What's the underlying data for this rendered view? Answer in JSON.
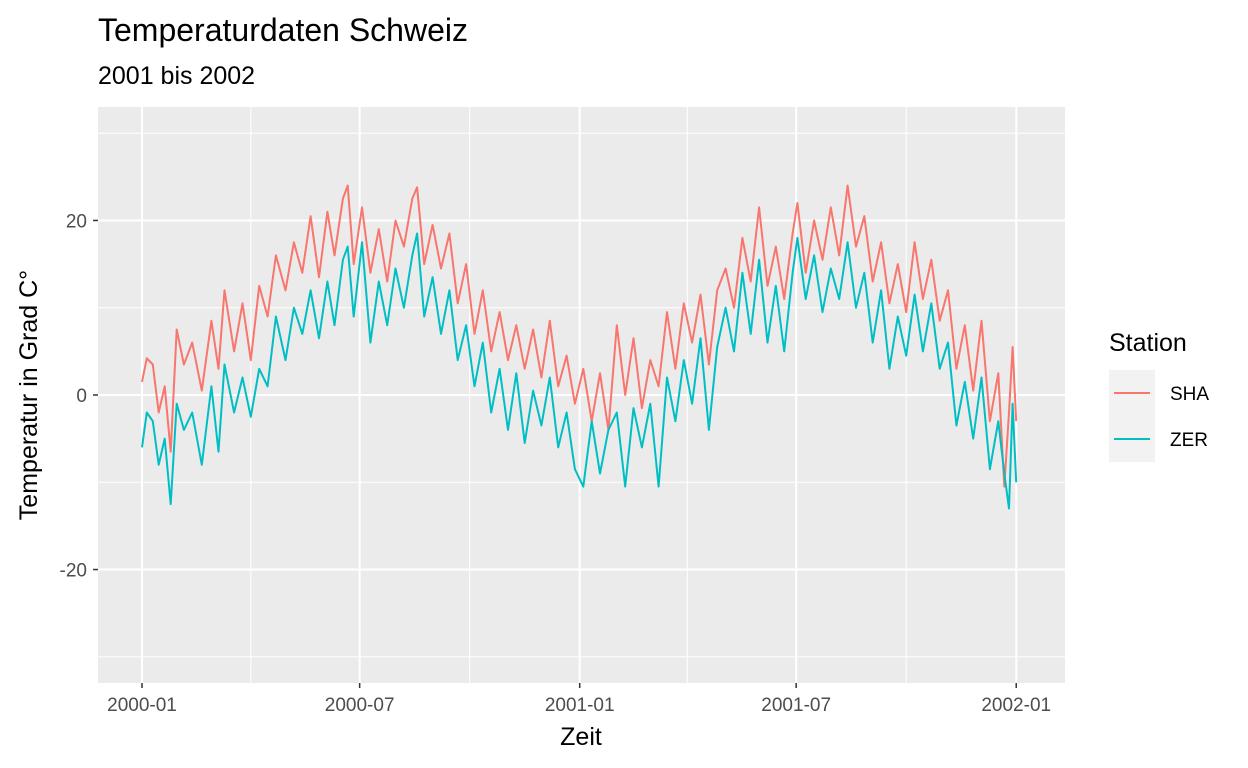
{
  "chart_data": {
    "type": "line",
    "title": "Temperaturdaten Schweiz",
    "subtitle": "2001 bis 2002",
    "xlabel": "Zeit",
    "ylabel": "Temperatur in Grad C°",
    "xlim": [
      "2000-01-01",
      "2002-01-05"
    ],
    "ylim": [
      -33,
      33
    ],
    "x_ticks": [
      "2000-01",
      "2000-07",
      "2001-01",
      "2001-07",
      "2002-01"
    ],
    "y_ticks": [
      -20,
      0,
      20
    ],
    "grid": true,
    "legend_title": "Station",
    "legend_position": "right",
    "series": [
      {
        "name": "SHA",
        "color": "#F8766D",
        "points": [
          [
            "2000-01-01",
            1.5
          ],
          [
            "2000-01-05",
            4.2
          ],
          [
            "2000-01-10",
            3.5
          ],
          [
            "2000-01-15",
            -2.0
          ],
          [
            "2000-01-20",
            1.0
          ],
          [
            "2000-01-25",
            -6.5
          ],
          [
            "2000-01-30",
            7.5
          ],
          [
            "2000-02-05",
            3.5
          ],
          [
            "2000-02-12",
            6.0
          ],
          [
            "2000-02-20",
            0.5
          ],
          [
            "2000-02-28",
            8.5
          ],
          [
            "2000-03-05",
            3.0
          ],
          [
            "2000-03-10",
            12.0
          ],
          [
            "2000-03-18",
            5.0
          ],
          [
            "2000-03-25",
            10.5
          ],
          [
            "2000-04-01",
            4.0
          ],
          [
            "2000-04-08",
            12.5
          ],
          [
            "2000-04-15",
            9.0
          ],
          [
            "2000-04-22",
            16.0
          ],
          [
            "2000-04-30",
            12.0
          ],
          [
            "2000-05-07",
            17.5
          ],
          [
            "2000-05-14",
            14.0
          ],
          [
            "2000-05-21",
            20.5
          ],
          [
            "2000-05-28",
            13.5
          ],
          [
            "2000-06-04",
            21.0
          ],
          [
            "2000-06-10",
            16.0
          ],
          [
            "2000-06-17",
            22.5
          ],
          [
            "2000-06-21",
            24.0
          ],
          [
            "2000-06-26",
            15.0
          ],
          [
            "2000-07-03",
            21.5
          ],
          [
            "2000-07-10",
            14.0
          ],
          [
            "2000-07-17",
            19.0
          ],
          [
            "2000-07-24",
            13.0
          ],
          [
            "2000-07-31",
            20.0
          ],
          [
            "2000-08-07",
            17.0
          ],
          [
            "2000-08-14",
            22.5
          ],
          [
            "2000-08-18",
            23.8
          ],
          [
            "2000-08-24",
            15.0
          ],
          [
            "2000-08-31",
            19.5
          ],
          [
            "2000-09-07",
            14.5
          ],
          [
            "2000-09-14",
            18.5
          ],
          [
            "2000-09-21",
            10.5
          ],
          [
            "2000-09-28",
            15.0
          ],
          [
            "2000-10-05",
            7.0
          ],
          [
            "2000-10-12",
            12.0
          ],
          [
            "2000-10-19",
            5.0
          ],
          [
            "2000-10-26",
            9.5
          ],
          [
            "2000-11-02",
            4.0
          ],
          [
            "2000-11-09",
            8.0
          ],
          [
            "2000-11-16",
            3.0
          ],
          [
            "2000-11-23",
            7.5
          ],
          [
            "2000-11-30",
            2.0
          ],
          [
            "2000-12-07",
            8.5
          ],
          [
            "2000-12-14",
            1.0
          ],
          [
            "2000-12-21",
            4.5
          ],
          [
            "2000-12-28",
            -1.0
          ],
          [
            "2001-01-04",
            3.0
          ],
          [
            "2001-01-11",
            -3.0
          ],
          [
            "2001-01-18",
            2.5
          ],
          [
            "2001-01-25",
            -4.0
          ],
          [
            "2001-02-01",
            8.0
          ],
          [
            "2001-02-08",
            0.0
          ],
          [
            "2001-02-15",
            6.5
          ],
          [
            "2001-02-22",
            -1.5
          ],
          [
            "2001-03-01",
            4.0
          ],
          [
            "2001-03-08",
            1.0
          ],
          [
            "2001-03-15",
            9.5
          ],
          [
            "2001-03-22",
            3.0
          ],
          [
            "2001-03-29",
            10.5
          ],
          [
            "2001-04-05",
            6.0
          ],
          [
            "2001-04-12",
            11.5
          ],
          [
            "2001-04-19",
            3.5
          ],
          [
            "2001-04-26",
            12.0
          ],
          [
            "2001-05-03",
            14.5
          ],
          [
            "2001-05-10",
            10.0
          ],
          [
            "2001-05-17",
            18.0
          ],
          [
            "2001-05-24",
            13.0
          ],
          [
            "2001-05-31",
            21.5
          ],
          [
            "2001-06-07",
            12.5
          ],
          [
            "2001-06-14",
            17.0
          ],
          [
            "2001-06-21",
            11.0
          ],
          [
            "2001-06-28",
            18.5
          ],
          [
            "2001-07-02",
            22.0
          ],
          [
            "2001-07-09",
            14.0
          ],
          [
            "2001-07-16",
            20.0
          ],
          [
            "2001-07-23",
            15.5
          ],
          [
            "2001-07-30",
            21.5
          ],
          [
            "2001-08-06",
            16.0
          ],
          [
            "2001-08-13",
            24.0
          ],
          [
            "2001-08-20",
            17.0
          ],
          [
            "2001-08-27",
            20.5
          ],
          [
            "2001-09-03",
            13.0
          ],
          [
            "2001-09-10",
            17.5
          ],
          [
            "2001-09-17",
            10.5
          ],
          [
            "2001-09-24",
            15.0
          ],
          [
            "2001-10-01",
            9.5
          ],
          [
            "2001-10-08",
            17.5
          ],
          [
            "2001-10-15",
            11.0
          ],
          [
            "2001-10-22",
            15.5
          ],
          [
            "2001-10-29",
            8.5
          ],
          [
            "2001-11-05",
            12.0
          ],
          [
            "2001-11-12",
            3.0
          ],
          [
            "2001-11-19",
            8.0
          ],
          [
            "2001-11-26",
            0.5
          ],
          [
            "2001-12-03",
            8.5
          ],
          [
            "2001-12-10",
            -3.0
          ],
          [
            "2001-12-17",
            2.5
          ],
          [
            "2001-12-22",
            -10.5
          ],
          [
            "2001-12-26",
            -2.0
          ],
          [
            "2001-12-29",
            5.5
          ],
          [
            "2002-01-01",
            -3.0
          ]
        ]
      },
      {
        "name": "ZER",
        "color": "#00BFC4",
        "points": [
          [
            "2000-01-01",
            -6.0
          ],
          [
            "2000-01-05",
            -2.0
          ],
          [
            "2000-01-10",
            -3.0
          ],
          [
            "2000-01-15",
            -8.0
          ],
          [
            "2000-01-20",
            -5.0
          ],
          [
            "2000-01-25",
            -12.5
          ],
          [
            "2000-01-30",
            -1.0
          ],
          [
            "2000-02-05",
            -4.0
          ],
          [
            "2000-02-12",
            -2.0
          ],
          [
            "2000-02-20",
            -8.0
          ],
          [
            "2000-02-28",
            1.0
          ],
          [
            "2000-03-05",
            -6.5
          ],
          [
            "2000-03-10",
            3.5
          ],
          [
            "2000-03-18",
            -2.0
          ],
          [
            "2000-03-25",
            2.0
          ],
          [
            "2000-04-01",
            -2.5
          ],
          [
            "2000-04-08",
            3.0
          ],
          [
            "2000-04-15",
            1.0
          ],
          [
            "2000-04-22",
            9.0
          ],
          [
            "2000-04-30",
            4.0
          ],
          [
            "2000-05-07",
            10.0
          ],
          [
            "2000-05-14",
            7.0
          ],
          [
            "2000-05-21",
            12.0
          ],
          [
            "2000-05-28",
            6.5
          ],
          [
            "2000-06-04",
            13.0
          ],
          [
            "2000-06-10",
            8.0
          ],
          [
            "2000-06-17",
            15.5
          ],
          [
            "2000-06-21",
            17.0
          ],
          [
            "2000-06-26",
            9.0
          ],
          [
            "2000-07-03",
            17.5
          ],
          [
            "2000-07-10",
            6.0
          ],
          [
            "2000-07-17",
            13.0
          ],
          [
            "2000-07-24",
            8.0
          ],
          [
            "2000-07-31",
            14.5
          ],
          [
            "2000-08-07",
            10.0
          ],
          [
            "2000-08-14",
            16.0
          ],
          [
            "2000-08-18",
            18.5
          ],
          [
            "2000-08-24",
            9.0
          ],
          [
            "2000-08-31",
            13.5
          ],
          [
            "2000-09-07",
            7.0
          ],
          [
            "2000-09-14",
            12.0
          ],
          [
            "2000-09-21",
            4.0
          ],
          [
            "2000-09-28",
            8.0
          ],
          [
            "2000-10-05",
            1.0
          ],
          [
            "2000-10-12",
            6.0
          ],
          [
            "2000-10-19",
            -2.0
          ],
          [
            "2000-10-26",
            3.0
          ],
          [
            "2000-11-02",
            -4.0
          ],
          [
            "2000-11-09",
            2.5
          ],
          [
            "2000-11-16",
            -5.5
          ],
          [
            "2000-11-23",
            0.5
          ],
          [
            "2000-11-30",
            -3.5
          ],
          [
            "2000-12-07",
            2.0
          ],
          [
            "2000-12-14",
            -6.0
          ],
          [
            "2000-12-21",
            -2.0
          ],
          [
            "2000-12-28",
            -8.5
          ],
          [
            "2001-01-04",
            -10.5
          ],
          [
            "2001-01-11",
            -3.0
          ],
          [
            "2001-01-18",
            -9.0
          ],
          [
            "2001-01-25",
            -4.0
          ],
          [
            "2001-02-01",
            -2.0
          ],
          [
            "2001-02-08",
            -10.5
          ],
          [
            "2001-02-15",
            -1.5
          ],
          [
            "2001-02-22",
            -6.0
          ],
          [
            "2001-03-01",
            -1.0
          ],
          [
            "2001-03-08",
            -10.5
          ],
          [
            "2001-03-15",
            2.0
          ],
          [
            "2001-03-22",
            -3.0
          ],
          [
            "2001-03-29",
            4.0
          ],
          [
            "2001-04-05",
            -1.0
          ],
          [
            "2001-04-12",
            6.5
          ],
          [
            "2001-04-19",
            -4.0
          ],
          [
            "2001-04-26",
            5.5
          ],
          [
            "2001-05-03",
            10.0
          ],
          [
            "2001-05-10",
            5.0
          ],
          [
            "2001-05-17",
            14.0
          ],
          [
            "2001-05-24",
            7.0
          ],
          [
            "2001-05-31",
            15.5
          ],
          [
            "2001-06-07",
            6.0
          ],
          [
            "2001-06-14",
            12.5
          ],
          [
            "2001-06-21",
            5.0
          ],
          [
            "2001-06-28",
            14.0
          ],
          [
            "2001-07-02",
            18.0
          ],
          [
            "2001-07-09",
            11.0
          ],
          [
            "2001-07-16",
            16.0
          ],
          [
            "2001-07-23",
            9.5
          ],
          [
            "2001-07-30",
            14.5
          ],
          [
            "2001-08-06",
            11.0
          ],
          [
            "2001-08-13",
            17.5
          ],
          [
            "2001-08-20",
            10.0
          ],
          [
            "2001-08-27",
            14.0
          ],
          [
            "2001-09-03",
            6.0
          ],
          [
            "2001-09-10",
            12.0
          ],
          [
            "2001-09-17",
            3.0
          ],
          [
            "2001-09-24",
            9.0
          ],
          [
            "2001-10-01",
            4.5
          ],
          [
            "2001-10-08",
            11.5
          ],
          [
            "2001-10-15",
            5.0
          ],
          [
            "2001-10-22",
            10.5
          ],
          [
            "2001-10-29",
            3.0
          ],
          [
            "2001-11-05",
            6.0
          ],
          [
            "2001-11-12",
            -3.5
          ],
          [
            "2001-11-19",
            1.5
          ],
          [
            "2001-11-26",
            -5.0
          ],
          [
            "2001-12-03",
            2.0
          ],
          [
            "2001-12-10",
            -8.5
          ],
          [
            "2001-12-17",
            -3.0
          ],
          [
            "2001-12-22",
            -9.0
          ],
          [
            "2001-12-26",
            -13.0
          ],
          [
            "2001-12-29",
            -1.0
          ],
          [
            "2002-01-01",
            -10.0
          ]
        ]
      }
    ]
  }
}
